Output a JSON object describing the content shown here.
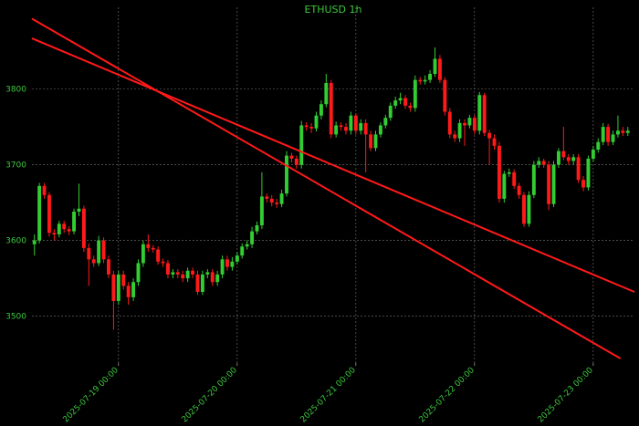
{
  "chart_data": {
    "type": "candlestick",
    "title": "ETHUSD 1h",
    "grid": true,
    "up_color": "#32cd32",
    "down_color": "#ff1a1a",
    "text_color": "#3cc83c",
    "xlim": [
      "2025-07-18 06:30",
      "2025-07-23 08:20"
    ],
    "ylim": [
      3438,
      3908
    ],
    "yticks": [
      3500,
      3600,
      3700,
      3800
    ],
    "xticks": [
      "2025-07-19 00:00",
      "2025-07-20 00:00",
      "2025-07-21 00:00",
      "2025-07-22 00:00",
      "2025-07-23 00:00"
    ],
    "x": [
      "2025-07-18 07:00",
      "2025-07-18 08:00",
      "2025-07-18 09:00",
      "2025-07-18 10:00",
      "2025-07-18 11:00",
      "2025-07-18 12:00",
      "2025-07-18 13:00",
      "2025-07-18 14:00",
      "2025-07-18 15:00",
      "2025-07-18 16:00",
      "2025-07-18 17:00",
      "2025-07-18 18:00",
      "2025-07-18 19:00",
      "2025-07-18 20:00",
      "2025-07-18 21:00",
      "2025-07-18 22:00",
      "2025-07-18 23:00",
      "2025-07-19 00:00",
      "2025-07-19 01:00",
      "2025-07-19 02:00",
      "2025-07-19 03:00",
      "2025-07-19 04:00",
      "2025-07-19 05:00",
      "2025-07-19 06:00",
      "2025-07-19 07:00",
      "2025-07-19 08:00",
      "2025-07-19 09:00",
      "2025-07-19 10:00",
      "2025-07-19 11:00",
      "2025-07-19 12:00",
      "2025-07-19 13:00",
      "2025-07-19 14:00",
      "2025-07-19 15:00",
      "2025-07-19 16:00",
      "2025-07-19 17:00",
      "2025-07-19 18:00",
      "2025-07-19 19:00",
      "2025-07-19 20:00",
      "2025-07-19 21:00",
      "2025-07-19 22:00",
      "2025-07-19 23:00",
      "2025-07-20 00:00",
      "2025-07-20 01:00",
      "2025-07-20 02:00",
      "2025-07-20 03:00",
      "2025-07-20 04:00",
      "2025-07-20 05:00",
      "2025-07-20 06:00",
      "2025-07-20 07:00",
      "2025-07-20 08:00",
      "2025-07-20 09:00",
      "2025-07-20 10:00",
      "2025-07-20 11:00",
      "2025-07-20 12:00",
      "2025-07-20 13:00",
      "2025-07-20 14:00",
      "2025-07-20 15:00",
      "2025-07-20 16:00",
      "2025-07-20 17:00",
      "2025-07-20 18:00",
      "2025-07-20 19:00",
      "2025-07-20 20:00",
      "2025-07-20 21:00",
      "2025-07-20 22:00",
      "2025-07-20 23:00",
      "2025-07-21 00:00",
      "2025-07-21 01:00",
      "2025-07-21 02:00",
      "2025-07-21 03:00",
      "2025-07-21 04:00",
      "2025-07-21 05:00",
      "2025-07-21 06:00",
      "2025-07-21 07:00",
      "2025-07-21 08:00",
      "2025-07-21 09:00",
      "2025-07-21 10:00",
      "2025-07-21 11:00",
      "2025-07-21 12:00",
      "2025-07-21 13:00",
      "2025-07-21 14:00",
      "2025-07-21 15:00",
      "2025-07-21 16:00",
      "2025-07-21 17:00",
      "2025-07-21 18:00",
      "2025-07-21 19:00",
      "2025-07-21 20:00",
      "2025-07-21 21:00",
      "2025-07-21 22:00",
      "2025-07-21 23:00",
      "2025-07-22 00:00",
      "2025-07-22 01:00",
      "2025-07-22 02:00",
      "2025-07-22 03:00",
      "2025-07-22 04:00",
      "2025-07-22 05:00",
      "2025-07-22 06:00",
      "2025-07-22 07:00",
      "2025-07-22 08:00",
      "2025-07-22 09:00",
      "2025-07-22 10:00",
      "2025-07-22 11:00",
      "2025-07-22 12:00",
      "2025-07-22 13:00",
      "2025-07-22 14:00",
      "2025-07-22 15:00",
      "2025-07-22 16:00",
      "2025-07-22 17:00",
      "2025-07-22 18:00",
      "2025-07-22 19:00",
      "2025-07-22 20:00",
      "2025-07-22 21:00",
      "2025-07-22 22:00",
      "2025-07-22 23:00",
      "2025-07-23 00:00",
      "2025-07-23 01:00",
      "2025-07-23 02:00",
      "2025-07-23 03:00",
      "2025-07-23 04:00",
      "2025-07-23 05:00",
      "2025-07-23 06:00",
      "2025-07-23 07:00"
    ],
    "open": [
      3595,
      3600,
      3672,
      3660,
      3610,
      3608,
      3622,
      3615,
      3612,
      3638,
      3642,
      3590,
      3575,
      3570,
      3600,
      3575,
      3555,
      3520,
      3555,
      3540,
      3525,
      3545,
      3570,
      3595,
      3590,
      3588,
      3572,
      3570,
      3555,
      3558,
      3555,
      3550,
      3560,
      3555,
      3532,
      3555,
      3558,
      3545,
      3555,
      3575,
      3565,
      3572,
      3580,
      3592,
      3595,
      3612,
      3620,
      3658,
      3655,
      3650,
      3648,
      3662,
      3712,
      3708,
      3700,
      3752,
      3750,
      3748,
      3765,
      3780,
      3808,
      3740,
      3752,
      3750,
      3745,
      3765,
      3745,
      3755,
      3740,
      3722,
      3740,
      3752,
      3762,
      3778,
      3785,
      3788,
      3778,
      3775,
      3812,
      3810,
      3812,
      3820,
      3840,
      3812,
      3770,
      3740,
      3735,
      3755,
      3752,
      3762,
      3745,
      3792,
      3742,
      3735,
      3725,
      3655,
      3688,
      3690,
      3672,
      3660,
      3622,
      3660,
      3700,
      3705,
      3700,
      3648,
      3700,
      3718,
      3710,
      3705,
      3710,
      3680,
      3670,
      3708,
      3720,
      3730,
      3750,
      3730,
      3740,
      3745,
      3742
    ],
    "high": [
      3608,
      3676,
      3676,
      3664,
      3615,
      3626,
      3626,
      3619,
      3642,
      3675,
      3646,
      3596,
      3580,
      3606,
      3604,
      3580,
      3560,
      3560,
      3560,
      3545,
      3550,
      3575,
      3600,
      3608,
      3594,
      3592,
      3576,
      3574,
      3562,
      3562,
      3560,
      3564,
      3564,
      3560,
      3560,
      3562,
      3562,
      3560,
      3580,
      3580,
      3578,
      3585,
      3596,
      3600,
      3618,
      3625,
      3690,
      3662,
      3660,
      3655,
      3667,
      3718,
      3716,
      3712,
      3758,
      3756,
      3755,
      3770,
      3785,
      3820,
      3812,
      3757,
      3756,
      3755,
      3770,
      3768,
      3760,
      3760,
      3745,
      3745,
      3756,
      3766,
      3782,
      3790,
      3795,
      3792,
      3782,
      3818,
      3816,
      3818,
      3825,
      3855,
      3845,
      3816,
      3775,
      3745,
      3760,
      3760,
      3766,
      3766,
      3796,
      3795,
      3746,
      3740,
      3730,
      3692,
      3695,
      3694,
      3676,
      3664,
      3665,
      3705,
      3710,
      3708,
      3705,
      3705,
      3722,
      3750,
      3714,
      3714,
      3714,
      3685,
      3712,
      3725,
      3735,
      3755,
      3754,
      3745,
      3765,
      3750,
      3750
    ],
    "low": [
      3580,
      3596,
      3655,
      3605,
      3600,
      3604,
      3610,
      3607,
      3608,
      3632,
      3585,
      3540,
      3565,
      3566,
      3570,
      3550,
      3482,
      3515,
      3535,
      3515,
      3520,
      3540,
      3565,
      3585,
      3584,
      3568,
      3565,
      3550,
      3550,
      3550,
      3545,
      3545,
      3550,
      3528,
      3528,
      3550,
      3540,
      3540,
      3550,
      3560,
      3560,
      3568,
      3576,
      3588,
      3590,
      3608,
      3615,
      3650,
      3645,
      3643,
      3644,
      3658,
      3703,
      3695,
      3695,
      3745,
      3742,
      3744,
      3760,
      3776,
      3735,
      3736,
      3745,
      3740,
      3740,
      3740,
      3740,
      3690,
      3718,
      3718,
      3736,
      3748,
      3758,
      3774,
      3780,
      3774,
      3770,
      3770,
      3806,
      3806,
      3808,
      3816,
      3808,
      3765,
      3735,
      3730,
      3730,
      3725,
      3748,
      3740,
      3740,
      3738,
      3700,
      3720,
      3650,
      3650,
      3684,
      3668,
      3655,
      3618,
      3618,
      3656,
      3696,
      3696,
      3640,
      3644,
      3696,
      3706,
      3700,
      3700,
      3676,
      3665,
      3666,
      3704,
      3716,
      3726,
      3725,
      3726,
      3736,
      3738,
      3738
    ],
    "close": [
      3600,
      3672,
      3660,
      3610,
      3608,
      3622,
      3615,
      3612,
      3638,
      3642,
      3590,
      3575,
      3570,
      3600,
      3575,
      3555,
      3520,
      3555,
      3540,
      3525,
      3545,
      3570,
      3595,
      3590,
      3588,
      3572,
      3570,
      3555,
      3558,
      3555,
      3550,
      3560,
      3555,
      3532,
      3555,
      3558,
      3545,
      3555,
      3575,
      3565,
      3572,
      3580,
      3592,
      3595,
      3612,
      3620,
      3658,
      3655,
      3650,
      3648,
      3662,
      3712,
      3708,
      3700,
      3752,
      3750,
      3748,
      3765,
      3780,
      3808,
      3740,
      3752,
      3750,
      3745,
      3765,
      3745,
      3755,
      3740,
      3722,
      3740,
      3752,
      3762,
      3778,
      3785,
      3788,
      3778,
      3775,
      3812,
      3810,
      3812,
      3820,
      3840,
      3812,
      3770,
      3740,
      3735,
      3755,
      3752,
      3762,
      3745,
      3792,
      3742,
      3735,
      3725,
      3655,
      3688,
      3690,
      3672,
      3660,
      3622,
      3660,
      3700,
      3705,
      3700,
      3648,
      3700,
      3718,
      3710,
      3705,
      3710,
      3680,
      3670,
      3708,
      3720,
      3730,
      3750,
      3730,
      3740,
      3745,
      3742,
      3745
    ],
    "trend_lines": [
      {
        "color": "#ff1a1a",
        "x": [
          "2025-07-18 06:30",
          "2025-07-23 05:30"
        ],
        "y": [
          3893,
          3444
        ]
      },
      {
        "color": "#ff1a1a",
        "x": [
          "2025-07-18 06:30",
          "2025-07-23 08:20"
        ],
        "y": [
          3867,
          3532
        ]
      }
    ]
  }
}
